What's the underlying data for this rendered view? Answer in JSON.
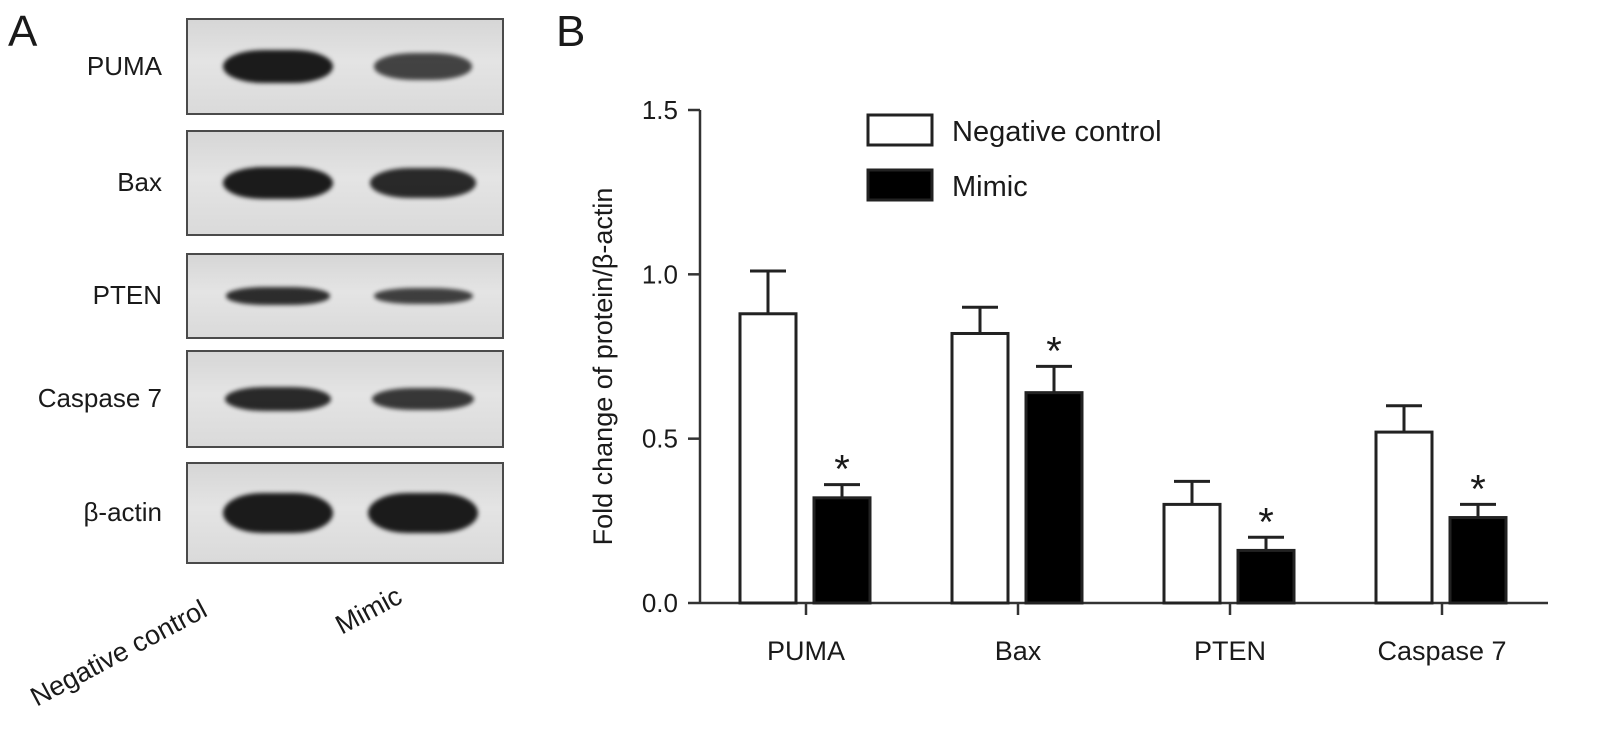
{
  "panel_a": {
    "letter": "A",
    "rows": [
      {
        "label": "PUMA",
        "band_intensity": [
          1.0,
          0.55
        ]
      },
      {
        "label": "Bax",
        "band_intensity": [
          1.0,
          0.85
        ]
      },
      {
        "label": "PTEN",
        "band_intensity": [
          0.8,
          0.6
        ]
      },
      {
        "label": "Caspase 7",
        "band_intensity": [
          0.85,
          0.7
        ]
      },
      {
        "label": "β-actin",
        "band_intensity": [
          1.0,
          1.0
        ]
      }
    ],
    "lanes": [
      "Negative control",
      "Mimic"
    ]
  },
  "panel_b": {
    "letter": "B"
  },
  "chart_data": {
    "type": "bar",
    "categories": [
      "PUMA",
      "Bax",
      "PTEN",
      "Caspase 7"
    ],
    "series": [
      {
        "name": "Negative control",
        "values": [
          0.88,
          0.82,
          0.3,
          0.52
        ],
        "errors": [
          0.13,
          0.08,
          0.07,
          0.08
        ],
        "fill": "#ffffff"
      },
      {
        "name": "Mimic",
        "values": [
          0.32,
          0.64,
          0.16,
          0.26
        ],
        "errors": [
          0.04,
          0.08,
          0.04,
          0.04
        ],
        "fill": "#000000"
      }
    ],
    "significance": [
      {
        "series": "Mimic",
        "category": "PUMA",
        "mark": "*"
      },
      {
        "series": "Mimic",
        "category": "Bax",
        "mark": "*"
      },
      {
        "series": "Mimic",
        "category": "PTEN",
        "mark": "*"
      },
      {
        "series": "Mimic",
        "category": "Caspase 7",
        "mark": "*"
      }
    ],
    "ylabel": "Fold change of protein/β-actin",
    "xlabel": "",
    "ylim": [
      0,
      1.5
    ],
    "yticks": [
      "0.0",
      "0.5",
      "1.0",
      "1.5"
    ],
    "legend_position": "top",
    "grid": false
  }
}
